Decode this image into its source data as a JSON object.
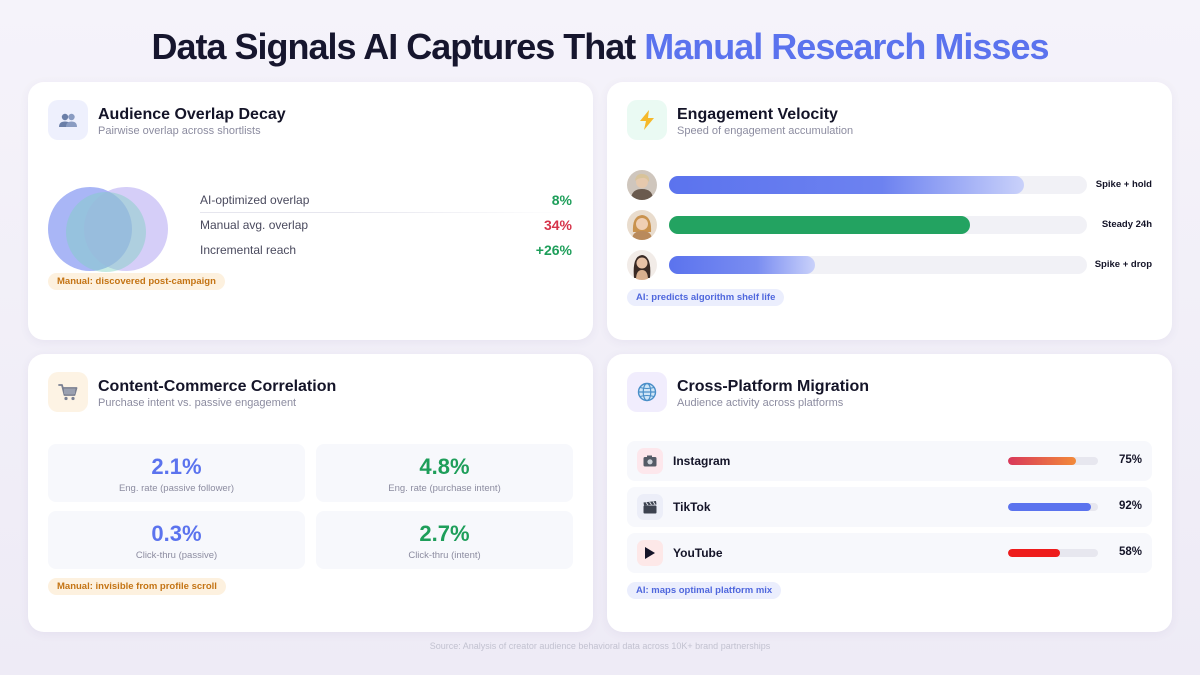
{
  "title": {
    "main": "Data Signals AI Captures That ",
    "accent": "Manual Research Misses"
  },
  "colors": {
    "accent": "#5b73ee",
    "green": "#1e9e5a",
    "red": "#d6334a",
    "orange": "#c47414"
  },
  "overlap": {
    "icon": "people-icon",
    "title": "Audience Overlap Decay",
    "subtitle": "Pairwise overlap across shortlists",
    "metrics": [
      {
        "label": "AI-optimized overlap",
        "value": "8%"
      },
      {
        "label": "Manual avg. overlap",
        "value": "34%"
      },
      {
        "label": "Incremental reach",
        "value": "+26%"
      }
    ],
    "pill": "Manual: discovered post-campaign"
  },
  "velocity": {
    "icon": "lightning-icon",
    "title": "Engagement Velocity",
    "subtitle": "Speed of engagement accumulation",
    "rows": [
      {
        "label": "Spike + hold",
        "level": 0.85
      },
      {
        "label": "Steady 24h",
        "level": 0.72
      },
      {
        "label": "Spike + drop",
        "level": 0.35
      }
    ],
    "pill": "AI: predicts algorithm shelf life"
  },
  "commerce": {
    "icon": "shopping-cart-icon",
    "title": "Content-Commerce Correlation",
    "subtitle": "Purchase intent vs. passive engagement",
    "stats": [
      {
        "value": "2.1%",
        "label": "Eng. rate (passive follower)"
      },
      {
        "value": "4.8%",
        "label": "Eng. rate (purchase intent)"
      },
      {
        "value": "0.3%",
        "label": "Click-thru (passive)"
      },
      {
        "value": "2.7%",
        "label": "Click-thru (intent)"
      }
    ],
    "pill": "Manual: invisible from profile scroll"
  },
  "migration": {
    "icon": "globe-icon",
    "title": "Cross-Platform Migration",
    "subtitle": "Audience activity across platforms",
    "platforms": [
      {
        "name": "Instagram",
        "icon": "camera-icon",
        "pct": "75%",
        "level": 0.75
      },
      {
        "name": "TikTok",
        "icon": "clapperboard-icon",
        "pct": "92%",
        "level": 0.92
      },
      {
        "name": "YouTube",
        "icon": "play-icon",
        "pct": "58%",
        "level": 0.58
      }
    ],
    "pill": "AI: maps optimal platform mix"
  },
  "source": "Source: Analysis of creator audience behavioral data across 10K+ brand partnerships"
}
